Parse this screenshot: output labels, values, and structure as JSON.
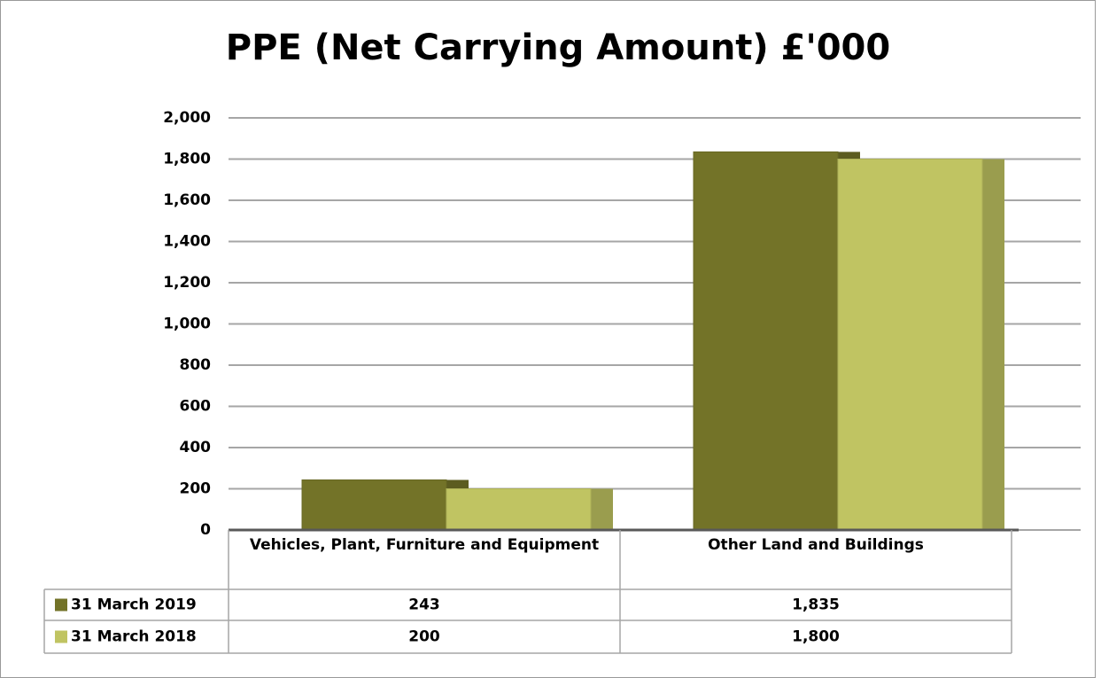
{
  "chart_data": {
    "type": "bar",
    "title": "PPE (Net Carrying Amount) £'000",
    "categories": [
      "Vehicles, Plant, Furniture and Equipment",
      "Other Land and Buildings"
    ],
    "series": [
      {
        "name": "31 March 2019",
        "color": "#737328",
        "values": [
          243,
          1835
        ],
        "value_labels": [
          "243",
          "1,835"
        ]
      },
      {
        "name": "31 March 2018",
        "color": "#c0c462",
        "values": [
          200,
          1800
        ],
        "value_labels": [
          "200",
          "1,800"
        ]
      }
    ],
    "ylim": [
      0,
      2000
    ],
    "yticks": [
      0,
      200,
      400,
      600,
      800,
      {
        "value": 1000,
        "label": "1,000"
      },
      {
        "value": 1200,
        "label": "1,200"
      },
      {
        "value": 1400,
        "label": "1,400"
      },
      {
        "value": 1600,
        "label": "1,600"
      },
      {
        "value": 1800,
        "label": "1,800"
      },
      {
        "value": 2000,
        "label": "2,000"
      }
    ],
    "grid": true
  }
}
